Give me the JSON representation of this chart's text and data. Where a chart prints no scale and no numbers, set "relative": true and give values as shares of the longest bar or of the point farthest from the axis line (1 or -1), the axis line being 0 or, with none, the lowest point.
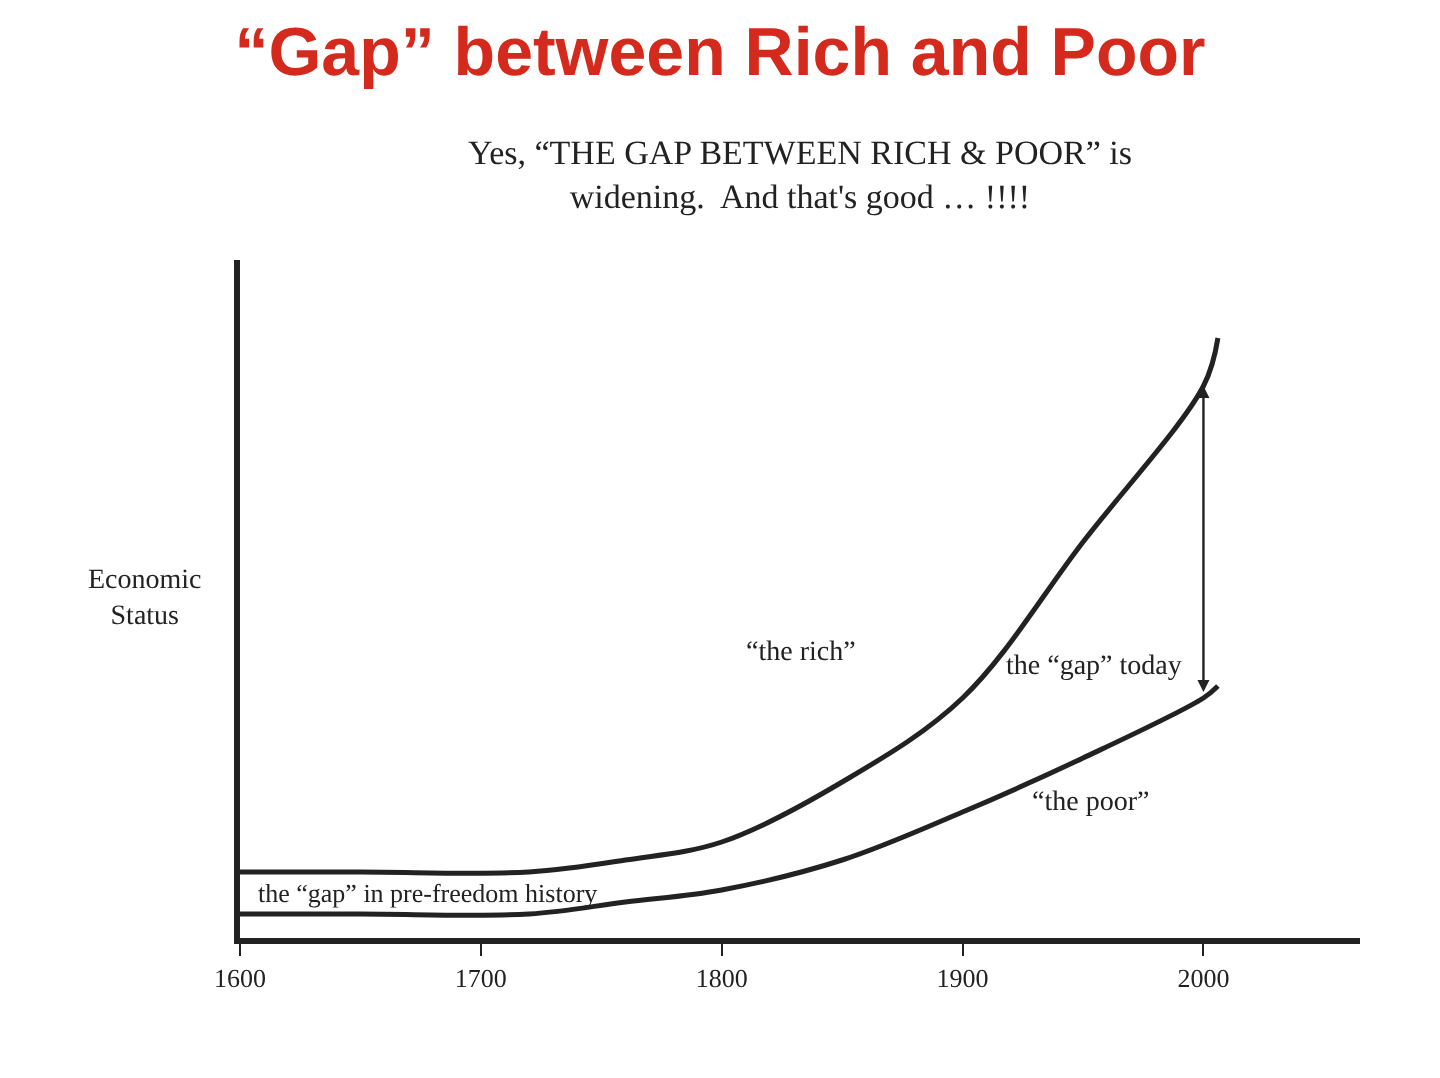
{
  "chart_data": {
    "type": "line",
    "title": "“Gap” between Rich and Poor",
    "subtitle": "Yes, “THE GAP BETWEEN RICH & POOR” is widening.  And that's good … !!!!",
    "ylabel": "Economic Status",
    "relative": true,
    "xlim": [
      1600,
      2065
    ],
    "xticks": [
      1600,
      1700,
      1800,
      1900,
      2000
    ],
    "series": [
      {
        "color": "#222222",
        "x": [
          1600,
          1650,
          1720,
          1760,
          1800,
          1850,
          1900,
          1950,
          2000,
          2006
        ],
        "values": [
          0.11,
          0.11,
          0.11,
          0.13,
          0.16,
          0.26,
          0.4,
          0.66,
          0.92,
          1.0
        ]
      },
      {
        "color": "#222222",
        "x": [
          1600,
          1650,
          1720,
          1760,
          1800,
          1850,
          1900,
          1950,
          2000,
          2006
        ],
        "values": [
          0.04,
          0.04,
          0.04,
          0.06,
          0.08,
          0.13,
          0.21,
          0.3,
          0.4,
          0.42
        ]
      }
    ],
    "annotations": [
      "“the rich”",
      "“the poor”",
      "the “gap” today",
      "the “gap” in pre-freedom history"
    ],
    "legend": false,
    "marker": "none",
    "line_style": "solid"
  }
}
